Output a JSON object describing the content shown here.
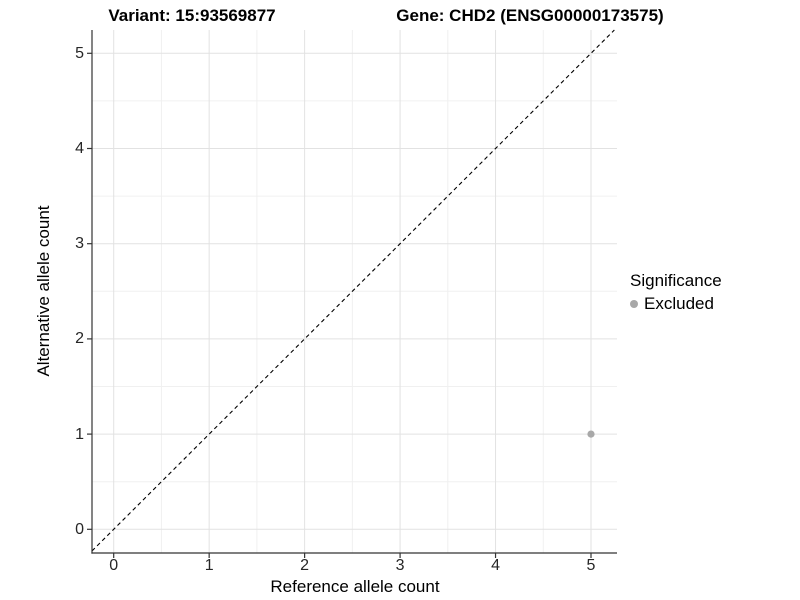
{
  "header": {
    "title_left": "Variant: 15:93569877",
    "title_right": "Gene: CHD2 (ENSG00000173575)"
  },
  "legend": {
    "title": "Significance",
    "items": [
      {
        "label": "Excluded",
        "color": "#a8a8a8",
        "marker": "dot-icon"
      }
    ]
  },
  "chart_data": {
    "type": "scatter",
    "title": "Variant: 15:93569877 | Gene: CHD2 (ENSG00000173575)",
    "xlabel": "Reference allele count",
    "ylabel": "Alternative allele count",
    "xlim": [
      -0.25,
      5.25
    ],
    "ylim": [
      -0.25,
      5.25
    ],
    "x_ticks": [
      "0",
      "1",
      "2",
      "3",
      "4",
      "5"
    ],
    "y_ticks": [
      "0",
      "1",
      "2",
      "3",
      "4",
      "5"
    ],
    "grid": "major+minor, light gray, white background",
    "legend_position": "right",
    "series": [
      {
        "name": "Excluded",
        "color": "#a8a8a8",
        "points": [
          {
            "x": 5,
            "y": 1
          }
        ]
      }
    ],
    "reference_line": {
      "shape": "y=x diagonal",
      "style": "dashed",
      "color": "#000000"
    }
  },
  "colors": {
    "background": "#ffffff",
    "axis_line": "#333333",
    "tick_label": "#262626",
    "grid_major": "#e2e2e2",
    "grid_minor": "#f0f0f0",
    "excluded_point": "#a8a8a8",
    "reference_line": "#000000"
  }
}
